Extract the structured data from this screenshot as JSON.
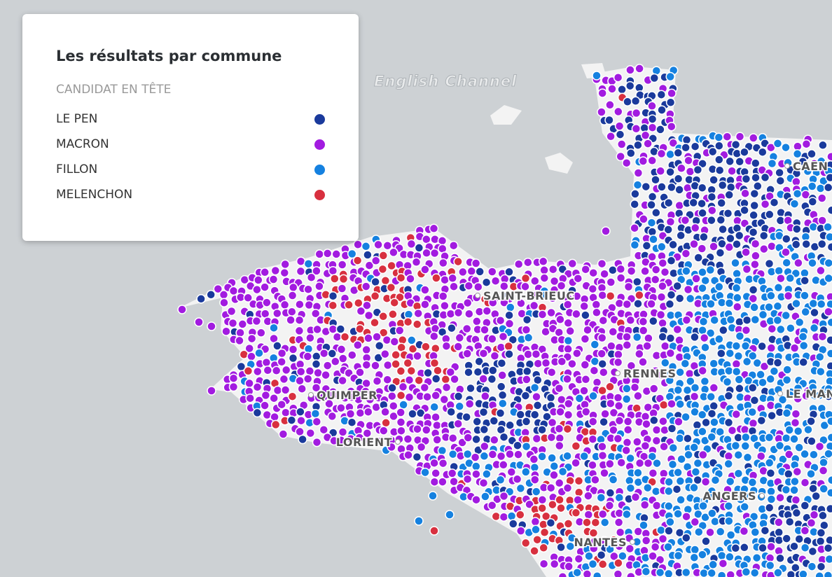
{
  "legend": {
    "title": "Les résultats par commune",
    "subtitle": "CANDIDAT EN TÊTE",
    "items": [
      {
        "label": "LE PEN",
        "color": "#1a3a9c"
      },
      {
        "label": "MACRON",
        "color": "#a21be0"
      },
      {
        "label": "FILLON",
        "color": "#1581e0"
      },
      {
        "label": "MELENCHON",
        "color": "#d8303f"
      }
    ]
  },
  "map": {
    "sea_label": "English Channel",
    "cities": [
      "SAINT-BRIEUC",
      "RENNES",
      "QUIMPER",
      "LORIENT",
      "NANTES",
      "ANGERS",
      "CAEN",
      "LE MANS"
    ]
  }
}
